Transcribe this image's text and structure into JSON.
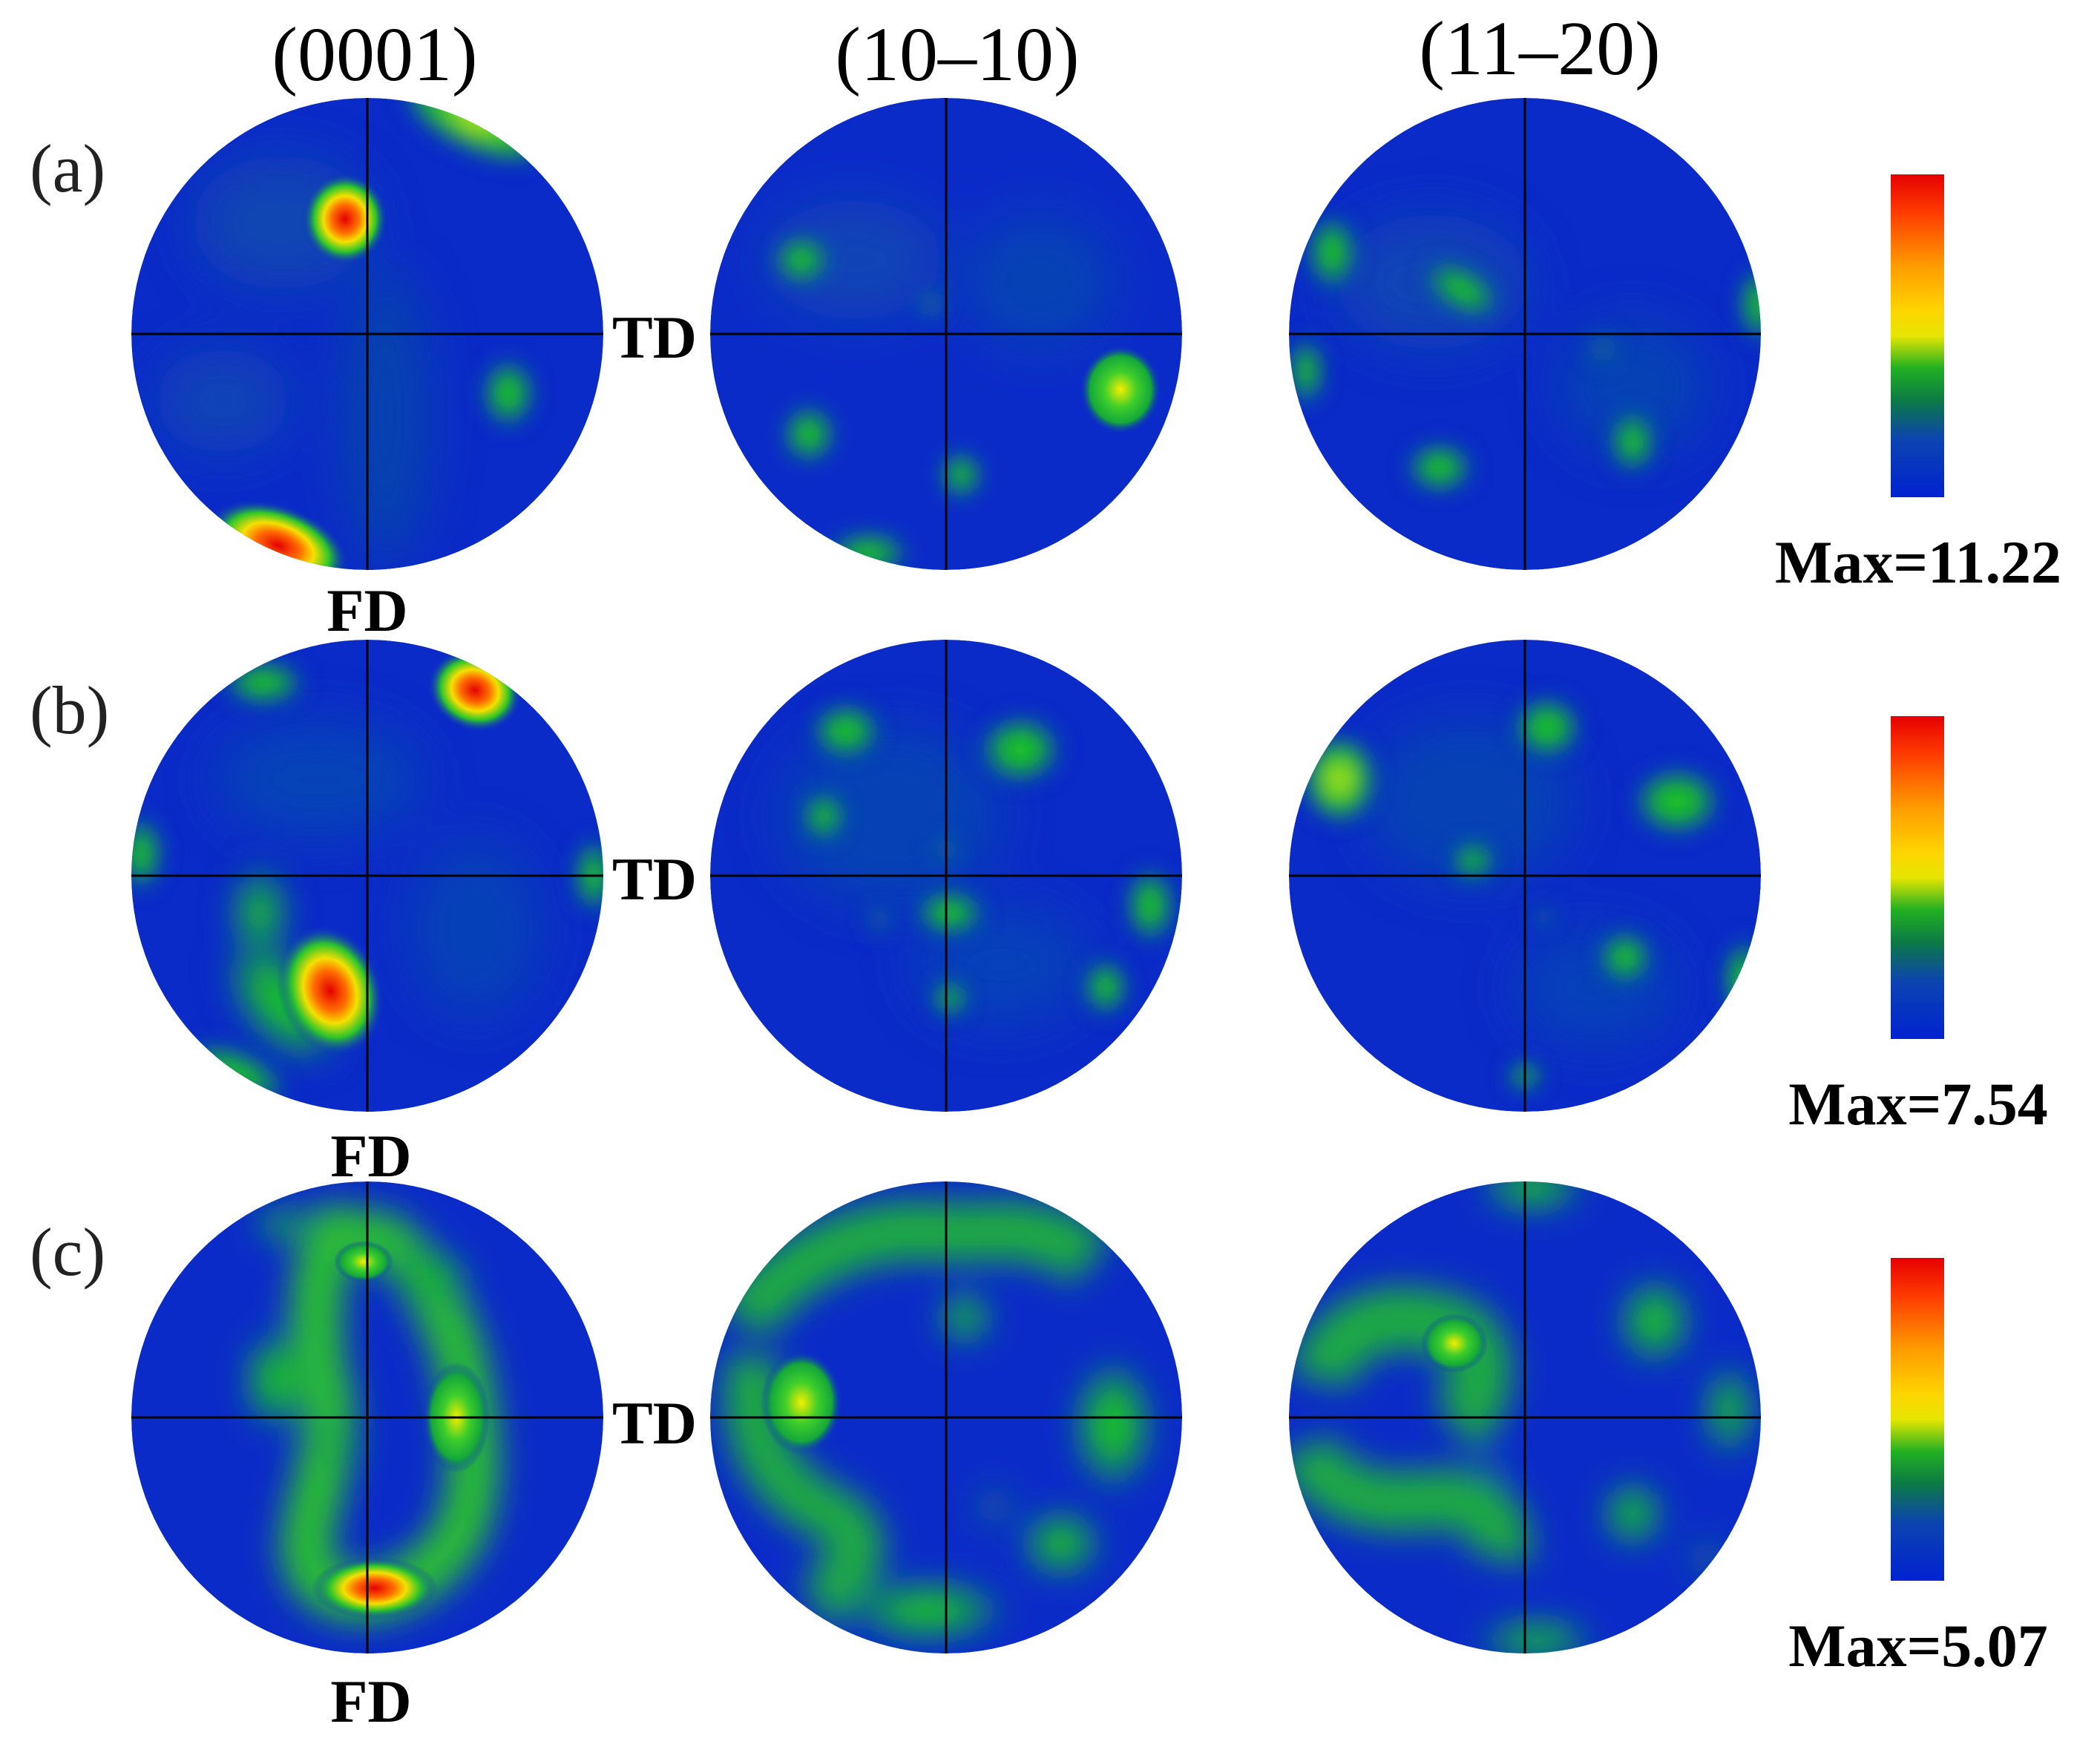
{
  "figure": {
    "column_titles": [
      "(0001)",
      "(10–10)",
      "(11–20)"
    ],
    "axis_labels": {
      "horizontal": "TD",
      "vertical": "FD"
    },
    "rows": [
      {
        "label": "(a)",
        "max_text": "Max=11.22",
        "max_value": 11.22
      },
      {
        "label": "(b)",
        "max_text": "Max=7.54",
        "max_value": 7.54
      },
      {
        "label": "(c)",
        "max_text": "Max=5.07",
        "max_value": 5.07
      }
    ],
    "colorbar": {
      "colors": [
        "#e60000",
        "#ff5a00",
        "#ffd200",
        "#e8e800",
        "#15b015",
        "#0a6e3c",
        "#0b3fb5",
        "#0020d0"
      ]
    },
    "colors": {
      "background": "#0b2bc8",
      "axis_line": "#000000"
    }
  }
}
